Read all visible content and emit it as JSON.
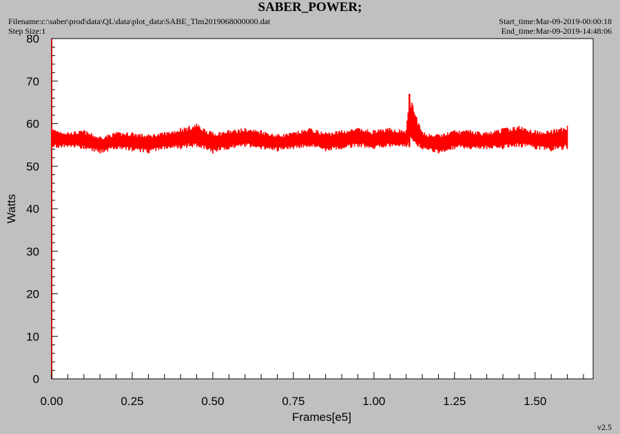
{
  "header": {
    "title": "SABER_POWER;",
    "filename": "Filename:c:\\saber\\prod\\data\\QL\\data\\plot_data\\SABE_Tlm2019068000000.dat",
    "step_size": "Step Size:1",
    "start_time": "Start_time:Mar-09-2019-00:00:18",
    "end_time": "End_time:Mar-09-2019-14:48:06"
  },
  "footer": {
    "version": "v2.5"
  },
  "colors": {
    "series": "#ff0000",
    "plot_bg": "#ffffff",
    "page_bg": "#c0c0c0"
  },
  "chart_data": {
    "type": "line",
    "title": "SABER_POWER;",
    "xlabel": "Frames[e5]",
    "ylabel": "Watts",
    "xlim": [
      0,
      1.68
    ],
    "ylim": [
      0,
      80
    ],
    "x_ticks": [
      "0.00",
      "0.25",
      "0.50",
      "0.75",
      "1.00",
      "1.25",
      "1.50"
    ],
    "y_ticks": [
      "0",
      "10",
      "20",
      "30",
      "40",
      "50",
      "60",
      "70",
      "80"
    ],
    "grid": false,
    "series": [
      {
        "x": [
          0.0,
          0.05,
          0.1,
          0.15,
          0.2,
          0.25,
          0.3,
          0.35,
          0.4,
          0.45,
          0.5,
          0.55,
          0.6,
          0.65,
          0.7,
          0.75,
          0.8,
          0.85,
          0.9,
          0.95,
          1.0,
          1.05,
          1.1,
          1.11,
          1.15,
          1.2,
          1.25,
          1.3,
          1.35,
          1.4,
          1.45,
          1.5,
          1.55,
          1.6
        ],
        "min": [
          54,
          54.5,
          54,
          53,
          54,
          53.5,
          53,
          54,
          54,
          54.5,
          53,
          54,
          54.5,
          54,
          53.5,
          54,
          54.5,
          53.5,
          54,
          54.5,
          54,
          54.5,
          54.5,
          54.5,
          54,
          53,
          54,
          54,
          54,
          54,
          54.5,
          54,
          53.5,
          54
        ],
        "max": [
          59,
          58,
          58.5,
          57,
          58,
          58,
          57.5,
          58,
          59,
          60,
          58,
          58.5,
          59,
          58.5,
          57.5,
          58,
          59,
          58,
          58.5,
          59,
          58.5,
          59,
          58.5,
          67,
          58,
          57.5,
          58.5,
          58.5,
          58,
          59,
          59.5,
          58.5,
          58.5,
          59.5
        ]
      }
    ]
  }
}
